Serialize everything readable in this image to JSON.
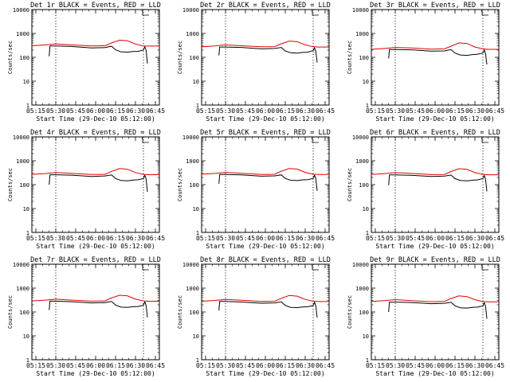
{
  "figure": {
    "series_colors": {
      "events": "#000000",
      "lld": "#e00000"
    },
    "x_tick_labels": [
      "05:15",
      "05:30",
      "05:45",
      "06:00",
      "06:15",
      "06:30",
      "06:45"
    ],
    "y_tick_labels": [
      "1",
      "10",
      "100",
      "1000",
      "10000"
    ],
    "ylabel": "Counts/sec",
    "xlabel": "Start Time (29-Dec-10 05:12:00)"
  },
  "chart_data": [
    {
      "type": "line",
      "title": "Det 1r BLACK = Events, RED = LLD",
      "xlabel": "Start Time (29-Dec-10 05:12:00)",
      "ylabel": "Counts/sec",
      "xlim": [
        0,
        96
      ],
      "ylim": [
        1,
        10000
      ],
      "yscale": "log",
      "markers": [
        18,
        84
      ],
      "series": [
        {
          "name": "Events",
          "color": "#000000",
          "x": [
            13,
            13.6,
            18,
            30,
            45,
            55,
            60,
            63,
            67,
            72,
            76,
            80,
            84,
            85,
            86,
            87
          ],
          "y": [
            110,
            300,
            300,
            285,
            245,
            255,
            290,
            205,
            170,
            165,
            175,
            178,
            200,
            280,
            200,
            55
          ]
        },
        {
          "name": "LLD",
          "color": "#e00000",
          "x": [
            0,
            10,
            18,
            30,
            45,
            55,
            60,
            66,
            72,
            78,
            84,
            88,
            96
          ],
          "y": [
            305,
            330,
            360,
            330,
            300,
            305,
            400,
            520,
            490,
            360,
            300,
            295,
            295
          ]
        }
      ]
    },
    {
      "type": "line",
      "title": "Det 2r BLACK = Events, RED = LLD",
      "xlabel": "Start Time (29-Dec-10 05:12:00)",
      "ylabel": "Counts/sec",
      "xlim": [
        0,
        96
      ],
      "ylim": [
        1,
        10000
      ],
      "yscale": "log",
      "markers": [
        18,
        84
      ],
      "series": [
        {
          "name": "Events",
          "color": "#000000",
          "x": [
            13,
            13.6,
            18,
            30,
            45,
            55,
            60,
            63,
            67,
            72,
            76,
            80,
            84,
            85,
            86,
            87
          ],
          "y": [
            120,
            270,
            270,
            260,
            225,
            235,
            260,
            185,
            155,
            150,
            160,
            165,
            190,
            250,
            180,
            60
          ]
        },
        {
          "name": "LLD",
          "color": "#e00000",
          "x": [
            0,
            10,
            18,
            30,
            45,
            55,
            60,
            66,
            72,
            78,
            84,
            88,
            96
          ],
          "y": [
            275,
            300,
            330,
            305,
            275,
            280,
            370,
            480,
            450,
            330,
            275,
            270,
            270
          ]
        }
      ]
    },
    {
      "type": "line",
      "title": "Det 3r BLACK = Events, RED = LLD",
      "xlabel": "Start Time (29-Dec-10 05:12:00)",
      "ylabel": "Counts/sec",
      "xlim": [
        0,
        96
      ],
      "ylim": [
        1,
        10000
      ],
      "yscale": "log",
      "markers": [
        18,
        84
      ],
      "series": [
        {
          "name": "Events",
          "color": "#000000",
          "x": [
            13,
            13.6,
            18,
            30,
            45,
            55,
            60,
            63,
            67,
            72,
            76,
            80,
            84,
            85,
            86,
            87
          ],
          "y": [
            90,
            210,
            210,
            205,
            180,
            185,
            210,
            150,
            125,
            120,
            130,
            135,
            150,
            205,
            140,
            50
          ]
        },
        {
          "name": "LLD",
          "color": "#e00000",
          "x": [
            0,
            10,
            18,
            30,
            45,
            55,
            60,
            66,
            72,
            78,
            84,
            88,
            96
          ],
          "y": [
            215,
            235,
            260,
            245,
            220,
            225,
            290,
            400,
            380,
            270,
            225,
            215,
            215
          ]
        }
      ]
    },
    {
      "type": "line",
      "title": "Det 4r BLACK = Events, RED = LLD",
      "xlabel": "Start Time (29-Dec-10 05:12:00)",
      "ylabel": "Counts/sec",
      "xlim": [
        0,
        96
      ],
      "ylim": [
        1,
        10000
      ],
      "yscale": "log",
      "markers": [
        18,
        84
      ],
      "series": [
        {
          "name": "Events",
          "color": "#000000",
          "x": [
            13,
            13.6,
            18,
            30,
            45,
            55,
            60,
            63,
            67,
            72,
            76,
            80,
            84,
            85,
            86,
            87
          ],
          "y": [
            100,
            260,
            260,
            250,
            220,
            230,
            255,
            180,
            150,
            145,
            155,
            160,
            180,
            245,
            175,
            50
          ]
        },
        {
          "name": "LLD",
          "color": "#e00000",
          "x": [
            0,
            10,
            18,
            30,
            45,
            55,
            60,
            66,
            72,
            78,
            84,
            88,
            96
          ],
          "y": [
            270,
            290,
            320,
            295,
            265,
            270,
            360,
            470,
            440,
            320,
            270,
            262,
            262
          ]
        }
      ]
    },
    {
      "type": "line",
      "title": "Det 5r BLACK = Events, RED = LLD",
      "xlabel": "Start Time (29-Dec-10 05:12:00)",
      "ylabel": "Counts/sec",
      "xlim": [
        0,
        96
      ],
      "ylim": [
        1,
        10000
      ],
      "yscale": "log",
      "markers": [
        18,
        84
      ],
      "series": [
        {
          "name": "Events",
          "color": "#000000",
          "x": [
            13,
            13.6,
            18,
            30,
            45,
            55,
            60,
            63,
            67,
            72,
            76,
            80,
            84,
            85,
            86,
            87
          ],
          "y": [
            110,
            265,
            265,
            255,
            225,
            232,
            258,
            182,
            152,
            148,
            158,
            162,
            182,
            250,
            178,
            55
          ]
        },
        {
          "name": "LLD",
          "color": "#e00000",
          "x": [
            0,
            10,
            18,
            30,
            45,
            55,
            60,
            66,
            72,
            78,
            84,
            88,
            96
          ],
          "y": [
            272,
            295,
            325,
            300,
            268,
            272,
            365,
            475,
            445,
            325,
            272,
            265,
            265
          ]
        }
      ]
    },
    {
      "type": "line",
      "title": "Det 6r BLACK = Events, RED = LLD",
      "xlabel": "Start Time (29-Dec-10 05:12:00)",
      "ylabel": "Counts/sec",
      "xlim": [
        0,
        96
      ],
      "ylim": [
        1,
        10000
      ],
      "yscale": "log",
      "markers": [
        18,
        84
      ],
      "series": [
        {
          "name": "Events",
          "color": "#000000",
          "x": [
            13,
            13.6,
            18,
            30,
            45,
            55,
            60,
            63,
            67,
            72,
            76,
            80,
            84,
            85,
            86,
            87
          ],
          "y": [
            95,
            255,
            255,
            245,
            218,
            228,
            252,
            178,
            150,
            145,
            152,
            158,
            178,
            240,
            170,
            52
          ]
        },
        {
          "name": "LLD",
          "color": "#e00000",
          "x": [
            0,
            10,
            18,
            30,
            45,
            55,
            60,
            66,
            72,
            78,
            84,
            88,
            96
          ],
          "y": [
            268,
            290,
            318,
            294,
            264,
            268,
            355,
            465,
            436,
            318,
            268,
            260,
            260
          ]
        }
      ]
    },
    {
      "type": "line",
      "title": "Det 7r BLACK = Events, RED = LLD",
      "xlabel": "Start Time (29-Dec-10 05:12:00)",
      "ylabel": "Counts/sec",
      "xlim": [
        0,
        96
      ],
      "ylim": [
        1,
        10000
      ],
      "yscale": "log",
      "markers": [
        18,
        84
      ],
      "series": [
        {
          "name": "Events",
          "color": "#000000",
          "x": [
            13,
            13.6,
            18,
            30,
            45,
            55,
            60,
            63,
            67,
            72,
            76,
            80,
            84,
            85,
            86,
            87
          ],
          "y": [
            120,
            285,
            285,
            270,
            240,
            248,
            275,
            195,
            160,
            156,
            166,
            170,
            192,
            265,
            190,
            60
          ]
        },
        {
          "name": "LLD",
          "color": "#e00000",
          "x": [
            0,
            10,
            18,
            30,
            45,
            55,
            60,
            66,
            72,
            78,
            84,
            88,
            96
          ],
          "y": [
            290,
            315,
            345,
            315,
            285,
            290,
            385,
            500,
            470,
            345,
            290,
            282,
            282
          ]
        }
      ]
    },
    {
      "type": "line",
      "title": "Det 8r BLACK = Events, RED = LLD",
      "xlabel": "Start Time (29-Dec-10 05:12:00)",
      "ylabel": "Counts/sec",
      "xlim": [
        0,
        96
      ],
      "ylim": [
        1,
        10000
      ],
      "yscale": "log",
      "markers": [
        18,
        84
      ],
      "series": [
        {
          "name": "Events",
          "color": "#000000",
          "x": [
            13,
            13.6,
            18,
            30,
            45,
            55,
            60,
            63,
            67,
            72,
            76,
            80,
            84,
            85,
            86,
            87
          ],
          "y": [
            115,
            275,
            275,
            262,
            232,
            240,
            265,
            188,
            156,
            152,
            162,
            166,
            186,
            255,
            182,
            58
          ]
        },
        {
          "name": "LLD",
          "color": "#e00000",
          "x": [
            0,
            10,
            18,
            30,
            45,
            55,
            60,
            66,
            72,
            78,
            84,
            88,
            96
          ],
          "y": [
            282,
            305,
            335,
            308,
            278,
            282,
            375,
            490,
            460,
            335,
            282,
            274,
            274
          ]
        }
      ]
    },
    {
      "type": "line",
      "title": "Det 9r BLACK = Events, RED = LLD",
      "xlabel": "Start Time (29-Dec-10 05:12:00)",
      "ylabel": "Counts/sec",
      "xlim": [
        0,
        96
      ],
      "ylim": [
        1,
        10000
      ],
      "yscale": "log",
      "markers": [
        18,
        84
      ],
      "series": [
        {
          "name": "Events",
          "color": "#000000",
          "x": [
            13,
            13.6,
            18,
            30,
            45,
            55,
            60,
            63,
            67,
            72,
            76,
            80,
            84,
            85,
            86,
            87
          ],
          "y": [
            100,
            260,
            260,
            250,
            222,
            230,
            256,
            180,
            150,
            146,
            156,
            160,
            180,
            245,
            175,
            52
          ]
        },
        {
          "name": "LLD",
          "color": "#e00000",
          "x": [
            0,
            10,
            18,
            30,
            45,
            55,
            60,
            66,
            72,
            78,
            84,
            88,
            96
          ],
          "y": [
            275,
            298,
            328,
            300,
            270,
            275,
            365,
            470,
            440,
            325,
            272,
            265,
            265
          ]
        }
      ]
    }
  ]
}
